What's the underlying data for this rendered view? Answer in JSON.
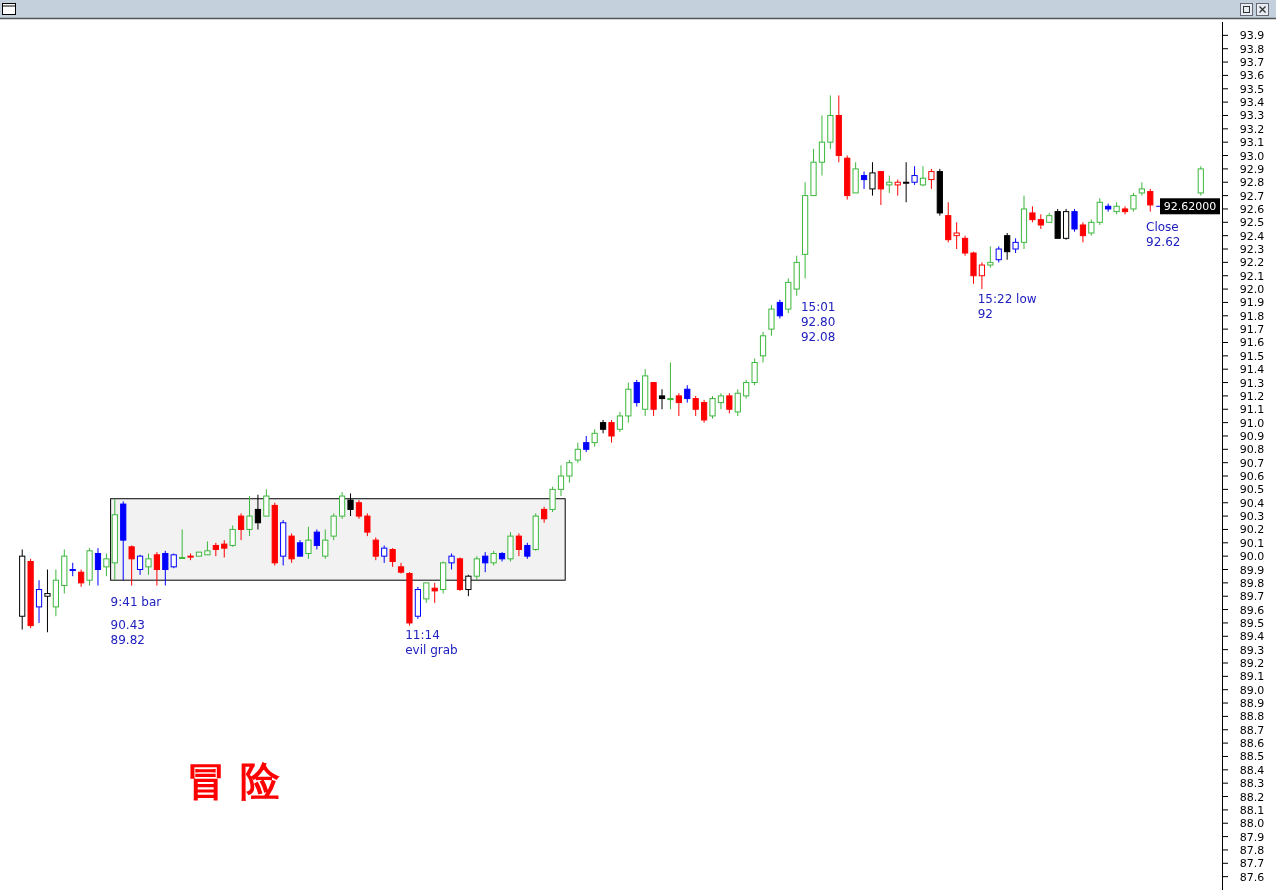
{
  "chart_data": {
    "type": "candlestick",
    "categories": [
      null,
      null,
      null,
      null,
      null,
      null,
      null,
      null,
      null,
      null,
      null,
      null,
      null,
      null,
      null,
      null,
      null,
      null,
      null,
      null,
      null,
      null,
      null,
      null,
      null,
      null,
      null,
      null,
      null,
      null,
      null,
      null,
      null,
      null,
      null,
      null,
      null,
      null,
      null,
      null,
      null,
      null,
      null,
      null,
      null,
      null,
      null,
      null,
      null,
      null,
      null,
      null,
      null,
      null,
      null,
      null,
      null,
      null,
      null,
      null,
      null,
      null,
      null,
      null,
      null,
      null,
      null,
      null,
      null,
      null,
      null,
      null,
      null,
      null,
      null,
      null,
      null,
      null,
      null,
      null,
      null,
      null,
      null,
      null,
      null,
      null,
      null,
      null,
      null,
      null,
      null,
      null,
      null,
      null,
      null,
      null,
      null,
      null,
      null,
      null,
      null,
      null,
      null,
      null,
      null,
      null,
      null,
      null,
      null,
      null,
      null,
      null,
      null,
      null,
      null,
      null,
      null,
      null,
      null,
      null,
      null,
      null,
      null,
      null,
      null,
      null,
      null,
      null,
      null,
      null,
      null,
      null,
      null,
      null,
      null,
      null,
      null,
      null,
      null,
      null,
      null
    ],
    "ohlc": [
      [
        89.55,
        90.05,
        89.45,
        90.0
      ],
      [
        89.96,
        89.98,
        89.46,
        89.48
      ],
      [
        89.62,
        89.82,
        89.5,
        89.75
      ],
      [
        89.7,
        89.9,
        89.43,
        89.72
      ],
      [
        89.62,
        89.9,
        89.55,
        89.82
      ],
      [
        89.78,
        90.05,
        89.72,
        90.0
      ],
      [
        89.9,
        89.95,
        89.85,
        89.9
      ],
      [
        89.88,
        89.9,
        89.77,
        89.8
      ],
      [
        89.82,
        90.06,
        89.78,
        90.04
      ],
      [
        90.02,
        90.06,
        89.78,
        89.9
      ],
      [
        89.92,
        90.02,
        89.85,
        89.98
      ],
      [
        89.95,
        90.43,
        89.82,
        90.31
      ],
      [
        90.39,
        90.41,
        89.82,
        90.12
      ],
      [
        90.07,
        90.08,
        89.78,
        89.98
      ],
      [
        89.9,
        90.01,
        89.86,
        90.0
      ],
      [
        89.92,
        90.02,
        89.86,
        89.98
      ],
      [
        90.01,
        90.03,
        89.78,
        89.9
      ],
      [
        90.02,
        90.04,
        89.78,
        89.9
      ],
      [
        89.92,
        90.02,
        89.91,
        90.01
      ],
      [
        89.99,
        90.2,
        89.99,
        89.99
      ],
      [
        90.0,
        90.02,
        89.97,
        90.0
      ],
      [
        90.0,
        90.03,
        90.0,
        90.03
      ],
      [
        90.01,
        90.11,
        90.01,
        90.04
      ],
      [
        90.08,
        90.1,
        90.0,
        90.05
      ],
      [
        90.09,
        90.12,
        89.99,
        90.06
      ],
      [
        90.08,
        90.23,
        90.07,
        90.2
      ],
      [
        90.3,
        90.32,
        90.12,
        90.2
      ],
      [
        90.2,
        90.45,
        90.15,
        90.3
      ],
      [
        90.35,
        90.46,
        90.2,
        90.25
      ],
      [
        90.3,
        90.5,
        90.3,
        90.45
      ],
      [
        90.38,
        90.4,
        89.93,
        89.95
      ],
      [
        90.0,
        90.27,
        89.93,
        90.25
      ],
      [
        90.15,
        90.17,
        89.95,
        89.98
      ],
      [
        90.1,
        90.12,
        90.0,
        90.0
      ],
      [
        90.02,
        90.22,
        89.98,
        90.12
      ],
      [
        90.18,
        90.2,
        90.05,
        90.08
      ],
      [
        90.0,
        90.2,
        89.98,
        90.12
      ],
      [
        90.15,
        90.32,
        90.12,
        90.3
      ],
      [
        90.3,
        90.48,
        90.28,
        90.45
      ],
      [
        90.42,
        90.47,
        90.3,
        90.35
      ],
      [
        90.4,
        90.42,
        90.28,
        90.3
      ],
      [
        90.3,
        90.32,
        90.15,
        90.18
      ],
      [
        90.12,
        90.14,
        89.97,
        90.0
      ],
      [
        90.0,
        90.08,
        89.95,
        90.06
      ],
      [
        90.05,
        90.06,
        89.92,
        89.96
      ],
      [
        89.92,
        89.95,
        89.87,
        89.88
      ],
      [
        89.87,
        89.88,
        89.48,
        89.5
      ],
      [
        89.55,
        89.77,
        89.53,
        89.75
      ],
      [
        89.68,
        89.8,
        89.65,
        89.8
      ],
      [
        89.76,
        89.8,
        89.65,
        89.74
      ],
      [
        89.75,
        89.96,
        89.72,
        89.95
      ],
      [
        89.95,
        90.02,
        89.9,
        90.0
      ],
      [
        89.98,
        89.99,
        89.74,
        89.75
      ],
      [
        89.75,
        89.86,
        89.7,
        89.85
      ],
      [
        89.85,
        90.0,
        89.82,
        89.98
      ],
      [
        90.0,
        90.03,
        89.88,
        89.95
      ],
      [
        89.95,
        90.04,
        89.93,
        90.02
      ],
      [
        90.02,
        90.03,
        89.96,
        89.98
      ],
      [
        89.98,
        90.18,
        89.96,
        90.15
      ],
      [
        90.15,
        90.17,
        90.0,
        90.05
      ],
      [
        90.08,
        90.1,
        89.98,
        90.0
      ],
      [
        90.05,
        90.32,
        90.04,
        90.3
      ],
      [
        90.35,
        90.37,
        90.25,
        90.28
      ],
      [
        90.35,
        90.52,
        90.33,
        90.5
      ],
      [
        90.5,
        90.68,
        90.45,
        90.6
      ],
      [
        90.6,
        90.72,
        90.55,
        90.7
      ],
      [
        90.72,
        90.85,
        90.7,
        90.8
      ],
      [
        90.85,
        90.9,
        90.78,
        90.8
      ],
      [
        90.85,
        90.95,
        90.82,
        90.92
      ],
      [
        91.0,
        91.02,
        90.92,
        90.95
      ],
      [
        91.0,
        91.02,
        90.85,
        90.9
      ],
      [
        90.95,
        91.08,
        90.93,
        91.05
      ],
      [
        91.05,
        91.3,
        91.0,
        91.25
      ],
      [
        91.3,
        91.32,
        91.12,
        91.15
      ],
      [
        91.1,
        91.4,
        91.05,
        91.35
      ],
      [
        91.3,
        91.3,
        91.05,
        91.1
      ],
      [
        91.2,
        91.25,
        91.1,
        91.18
      ],
      [
        91.18,
        91.45,
        91.1,
        91.18
      ],
      [
        91.2,
        91.22,
        91.05,
        91.15
      ],
      [
        91.25,
        91.28,
        91.15,
        91.18
      ],
      [
        91.18,
        91.2,
        91.05,
        91.1
      ],
      [
        91.15,
        91.17,
        91.0,
        91.02
      ],
      [
        91.05,
        91.2,
        91.03,
        91.18
      ],
      [
        91.15,
        91.22,
        91.1,
        91.2
      ],
      [
        91.2,
        91.22,
        91.07,
        91.1
      ],
      [
        91.08,
        91.25,
        91.05,
        91.22
      ],
      [
        91.2,
        91.32,
        91.18,
        91.3
      ],
      [
        91.3,
        91.48,
        91.28,
        91.45
      ],
      [
        91.5,
        91.68,
        91.45,
        91.65
      ],
      [
        91.7,
        91.88,
        91.65,
        91.85
      ],
      [
        91.9,
        91.92,
        91.78,
        91.8
      ],
      [
        91.85,
        92.08,
        91.82,
        92.05
      ],
      [
        92.0,
        92.25,
        91.95,
        92.2
      ],
      [
        92.26,
        92.8,
        92.08,
        92.7
      ],
      [
        92.7,
        93.05,
        92.7,
        92.95
      ],
      [
        92.95,
        93.3,
        92.85,
        93.1
      ],
      [
        93.1,
        93.45,
        93.05,
        93.3
      ],
      [
        93.3,
        93.45,
        92.95,
        93.0
      ],
      [
        92.98,
        93.0,
        92.67,
        92.7
      ],
      [
        92.72,
        92.95,
        92.72,
        92.9
      ],
      [
        92.85,
        92.88,
        92.75,
        92.82
      ],
      [
        92.75,
        92.95,
        92.7,
        92.87
      ],
      [
        92.88,
        92.88,
        92.63,
        92.75
      ],
      [
        92.78,
        92.85,
        92.72,
        92.8
      ],
      [
        92.78,
        92.82,
        92.7,
        92.8
      ],
      [
        92.8,
        92.95,
        92.65,
        92.8
      ],
      [
        92.8,
        92.92,
        92.78,
        92.85
      ],
      [
        92.78,
        92.92,
        92.77,
        92.83
      ],
      [
        92.82,
        92.9,
        92.75,
        92.88
      ],
      [
        92.88,
        92.9,
        92.55,
        92.57
      ],
      [
        92.55,
        92.65,
        92.35,
        92.37
      ],
      [
        92.4,
        92.5,
        92.3,
        92.42
      ],
      [
        92.38,
        92.4,
        92.25,
        92.27
      ],
      [
        92.27,
        92.28,
        92.04,
        92.1
      ],
      [
        92.1,
        92.2,
        92.0,
        92.18
      ],
      [
        92.18,
        92.32,
        92.16,
        92.2
      ],
      [
        92.22,
        92.32,
        92.2,
        92.3
      ],
      [
        92.4,
        92.42,
        92.22,
        92.28
      ],
      [
        92.3,
        92.38,
        92.27,
        92.35
      ],
      [
        92.35,
        92.7,
        92.3,
        92.6
      ],
      [
        92.57,
        92.62,
        92.5,
        92.52
      ],
      [
        92.52,
        92.56,
        92.45,
        92.48
      ],
      [
        92.5,
        92.57,
        92.5,
        92.55
      ],
      [
        92.58,
        92.6,
        92.38,
        92.38
      ],
      [
        92.38,
        92.6,
        92.37,
        92.58
      ],
      [
        92.58,
        92.6,
        92.43,
        92.45
      ],
      [
        92.48,
        92.5,
        92.35,
        92.4
      ],
      [
        92.42,
        92.52,
        92.4,
        92.5
      ],
      [
        92.5,
        92.68,
        92.48,
        92.65
      ],
      [
        92.62,
        92.64,
        92.58,
        92.6
      ],
      [
        92.58,
        92.65,
        92.56,
        92.62
      ],
      [
        92.6,
        92.62,
        92.56,
        92.58
      ],
      [
        92.6,
        92.72,
        92.58,
        92.7
      ],
      [
        92.72,
        92.8,
        92.7,
        92.75
      ],
      [
        92.73,
        92.75,
        92.58,
        92.63
      ],
      null,
      null,
      null,
      null,
      null,
      [
        92.72,
        92.92,
        92.7,
        92.9
      ]
    ],
    "colors": [
      "#000000",
      "#ff0000",
      "#0000ff",
      "#000000",
      "#3cb83c",
      "#3cb83c",
      "#0000ff",
      "#ff0000",
      "#3cb83c",
      "#0000ff",
      "#3cb83c",
      "#3cb83c",
      "#0000ff",
      "#ff0000",
      "#0000ff",
      "#3cb83c",
      "#ff0000",
      "#0000ff",
      "#0000ff",
      "#3cb83c",
      "#ff0000",
      "#3cb83c",
      "#3cb83c",
      "#ff0000",
      "#ff0000",
      "#3cb83c",
      "#ff0000",
      "#3cb83c",
      "#000000",
      "#3cb83c",
      "#ff0000",
      "#0000ff",
      "#ff0000",
      "#0000ff",
      "#3cb83c",
      "#0000ff",
      "#3cb83c",
      "#3cb83c",
      "#3cb83c",
      "#000000",
      "#ff0000",
      "#ff0000",
      "#ff0000",
      "#0000ff",
      "#ff0000",
      "#ff0000",
      "#ff0000",
      "#0000ff",
      "#3cb83c",
      "#ff0000",
      "#3cb83c",
      "#0000ff",
      "#ff0000",
      "#000000",
      "#3cb83c",
      "#0000ff",
      "#3cb83c",
      "#0000ff",
      "#3cb83c",
      "#ff0000",
      "#0000ff",
      "#3cb83c",
      "#ff0000",
      "#3cb83c",
      "#3cb83c",
      "#3cb83c",
      "#3cb83c",
      "#0000ff",
      "#3cb83c",
      "#000000",
      "#ff0000",
      "#3cb83c",
      "#3cb83c",
      "#0000ff",
      "#3cb83c",
      "#ff0000",
      "#000000",
      "#3cb83c",
      "#ff0000",
      "#0000ff",
      "#ff0000",
      "#ff0000",
      "#3cb83c",
      "#3cb83c",
      "#ff0000",
      "#3cb83c",
      "#3cb83c",
      "#3cb83c",
      "#3cb83c",
      "#3cb83c",
      "#0000ff",
      "#3cb83c",
      "#3cb83c",
      "#3cb83c",
      "#3cb83c",
      "#3cb83c",
      "#3cb83c",
      "#ff0000",
      "#ff0000",
      "#3cb83c",
      "#0000ff",
      "#000000",
      "#ff0000",
      "#3cb83c",
      "#ff0000",
      "#000000",
      "#0000ff",
      "#3cb83c",
      "#ff0000",
      "#000000",
      "#ff0000",
      "#ff0000",
      "#ff0000",
      "#ff0000",
      "#ff0000",
      "#3cb83c",
      "#0000ff",
      "#000000",
      "#0000ff",
      "#3cb83c",
      "#ff0000",
      "#ff0000",
      "#3cb83c",
      "#000000",
      "#000000",
      "#0000ff",
      "#ff0000",
      "#3cb83c",
      "#3cb83c",
      "#0000ff",
      "#3cb83c",
      "#ff0000",
      "#3cb83c",
      "#3cb83c",
      "#ff0000",
      null,
      null,
      null,
      null,
      null,
      "#3cb83c"
    ],
    "ylim": [
      87.5,
      94.0
    ],
    "yticks": [
      87.6,
      87.7,
      87.8,
      87.9,
      {
        "value": 88,
        "label": "88.0"
      },
      88.1,
      88.2,
      88.3,
      88.4,
      88.5,
      88.6,
      88.7,
      88.8,
      88.9,
      {
        "value": 89,
        "label": "89.0"
      },
      89.1,
      89.2,
      89.3,
      89.4,
      89.5,
      89.6,
      89.7,
      89.8,
      89.9,
      {
        "value": 90,
        "label": "90.0"
      },
      90.1,
      90.2,
      90.3,
      90.4,
      90.5,
      90.6,
      90.7,
      90.8,
      90.9,
      {
        "value": 91,
        "label": "91.0"
      },
      91.1,
      91.2,
      91.3,
      91.4,
      91.5,
      91.6,
      91.7,
      91.8,
      91.9,
      {
        "value": 92,
        "label": "92.0"
      },
      92.1,
      92.2,
      92.3,
      92.4,
      92.5,
      92.6,
      92.7,
      92.8,
      92.9,
      {
        "value": 93,
        "label": "93.0"
      },
      93.1,
      93.2,
      93.3,
      93.4,
      93.5,
      93.6,
      93.7,
      93.8,
      93.9
    ],
    "tick_labels": "y",
    "grid": false,
    "ref_lines": [
      {
        "axis": "y",
        "value": 92.62,
        "label": "92.62000",
        "color": "#0000ff"
      }
    ],
    "bands": [
      {
        "axis": "y",
        "from": 89.82,
        "to": 90.43,
        "color": "#000000"
      }
    ],
    "annotations": [
      "9:41 bar",
      "90.43",
      "89.82",
      "11:14",
      "evil grab",
      "15:01",
      "92.80",
      "92.08",
      "15:22 low",
      "92",
      "Close",
      "92.62",
      "冒险"
    ]
  }
}
